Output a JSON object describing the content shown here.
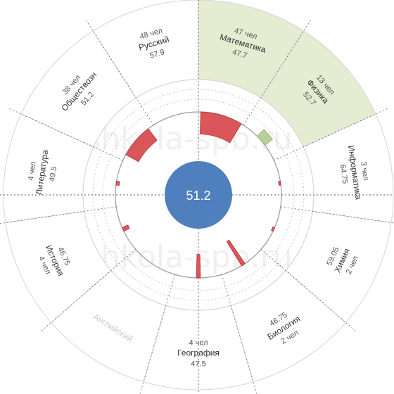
{
  "watermark": "shkola-spb.ru",
  "colors": {
    "ring_stroke": "#d5d5d5",
    "highlight_fill": "#e4ecd2",
    "bar_red": "#d9575a",
    "bar_red_stroke": "#b8323a",
    "bar_green": "#b8d09a",
    "bar_green_stroke": "#8fae6e",
    "center_fill": "#4f7fbd",
    "axis": "#555555",
    "grid": "#bdbdbd"
  },
  "chart_data": {
    "type": "polar-bar",
    "center_value": "51.2",
    "baseline": 51.2,
    "subjects": [
      {
        "name": "Математика",
        "count": "47 чел",
        "score": "47.7",
        "value": 47.7,
        "highlight": true
      },
      {
        "name": "Физика",
        "count": "13 чел",
        "score": "52.7",
        "value": 52.7,
        "highlight": true
      },
      {
        "name": "Информатика",
        "count": "3 чел",
        "score": "64.75",
        "value": 64.75
      },
      {
        "name": "Химия",
        "count": "2 чел",
        "score": "59.05",
        "value": 59.05
      },
      {
        "name": "Биология",
        "count": "2 чел",
        "score": "46.75",
        "value": 46.75
      },
      {
        "name": "География",
        "count": "4 чел",
        "score": "47.5",
        "value": 47.5
      },
      {
        "name": "Английский",
        "count": "",
        "score": "",
        "value": null,
        "disabled": true
      },
      {
        "name": "История",
        "count": "4 чел",
        "score": "46.75",
        "value": 46.75
      },
      {
        "name": "Литература",
        "count": "4 чел",
        "score": "49.5",
        "value": 49.5
      },
      {
        "name": "Обществозн",
        "count": "38 чел",
        "score": "51.2",
        "value": 51.2
      },
      {
        "name": "Русский",
        "count": "48 чел",
        "score": "57.9",
        "value": 57.9
      }
    ],
    "bars": [
      {
        "subject": "Математика",
        "count": 47,
        "delta": -3.5,
        "color": "red"
      },
      {
        "subject": "Физика",
        "count": 13,
        "delta": 1.5,
        "color": "green"
      },
      {
        "subject": "Информатика",
        "count": 3,
        "delta": -0.3,
        "color": "red"
      },
      {
        "subject": "Химия",
        "count": 2,
        "delta": -0.3,
        "color": "red"
      },
      {
        "subject": "Биология",
        "count": 2,
        "delta": -4.5,
        "color": "red"
      },
      {
        "subject": "География",
        "count": 4,
        "delta": -3.7,
        "color": "red"
      },
      {
        "subject": "История",
        "count": 4,
        "delta": -1.0,
        "color": "red"
      },
      {
        "subject": "Литература",
        "count": 4,
        "delta": -0.5,
        "color": "red"
      },
      {
        "subject": "Обществозн",
        "count": 38,
        "delta": -2.3,
        "color": "red"
      }
    ]
  }
}
